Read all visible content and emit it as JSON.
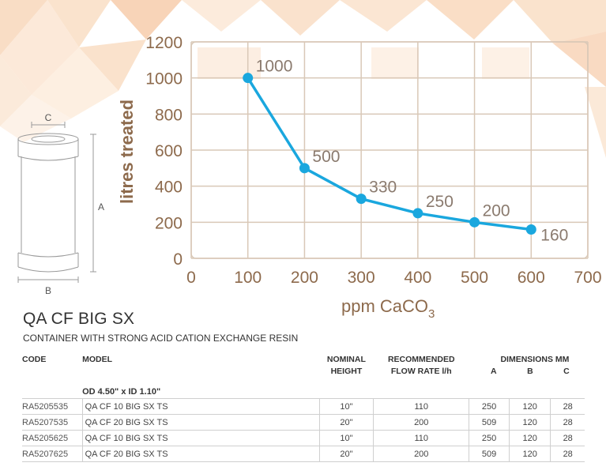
{
  "colors": {
    "line": "#1aa7de",
    "axis_text": "#8d6a4c",
    "grid": "#d9c8b7",
    "bg_shape_1": "#f6c8a0",
    "bg_shape_2": "#f9dcc1",
    "bg_shape_3": "#fbe7d4"
  },
  "chart_data": {
    "type": "line",
    "x": [
      100,
      200,
      300,
      400,
      500,
      600
    ],
    "series": [
      {
        "values": [
          1000,
          500,
          330,
          250,
          200,
          160
        ]
      }
    ],
    "data_labels": [
      "1000",
      "500",
      "330",
      "250",
      "200",
      "160"
    ],
    "xlabel": "ppm CaCO",
    "xlabel_sub": "3",
    "ylabel": "litres treated",
    "xlim": [
      0,
      700
    ],
    "ylim": [
      0,
      1200
    ],
    "x_ticks": [
      "0",
      "100",
      "200",
      "300",
      "400",
      "500",
      "600",
      "700"
    ],
    "y_ticks": [
      "0",
      "200",
      "400",
      "600",
      "800",
      "1000",
      "1200"
    ],
    "grid": true
  },
  "diagram": {
    "label_a": "A",
    "label_b": "B",
    "label_c": "C"
  },
  "product": {
    "title": "QA CF BIG SX",
    "subtitle": "CONTAINER WITH STRONG ACID CATION EXCHANGE RESIN"
  },
  "table": {
    "headers": {
      "code": "CODE",
      "model": "MODEL",
      "height_1": "NOMINAL",
      "height_2": "HEIGHT",
      "flow_1": "RECOMMENDED",
      "flow_2": "FLOW RATE l/h",
      "dims": "DIMENSIONS MM",
      "a": "A",
      "b": "B",
      "c": "C"
    },
    "group_label": "OD 4.50\" x ID 1.10\"",
    "rows": [
      {
        "code": "RA5205535",
        "model": "QA CF 10 BIG SX TS",
        "height": "10\"",
        "flow": "110",
        "a": "250",
        "b": "120",
        "c": "28"
      },
      {
        "code": "RA5207535",
        "model": "QA CF 20 BIG SX TS",
        "height": "20\"",
        "flow": "200",
        "a": "509",
        "b": "120",
        "c": "28"
      },
      {
        "code": "RA5205625",
        "model": "QA CF 10 BIG SX TS",
        "height": "10\"",
        "flow": "110",
        "a": "250",
        "b": "120",
        "c": "28"
      },
      {
        "code": "RA5207625",
        "model": "QA CF 20 BIG SX TS",
        "height": "20\"",
        "flow": "200",
        "a": "509",
        "b": "120",
        "c": "28"
      }
    ]
  }
}
